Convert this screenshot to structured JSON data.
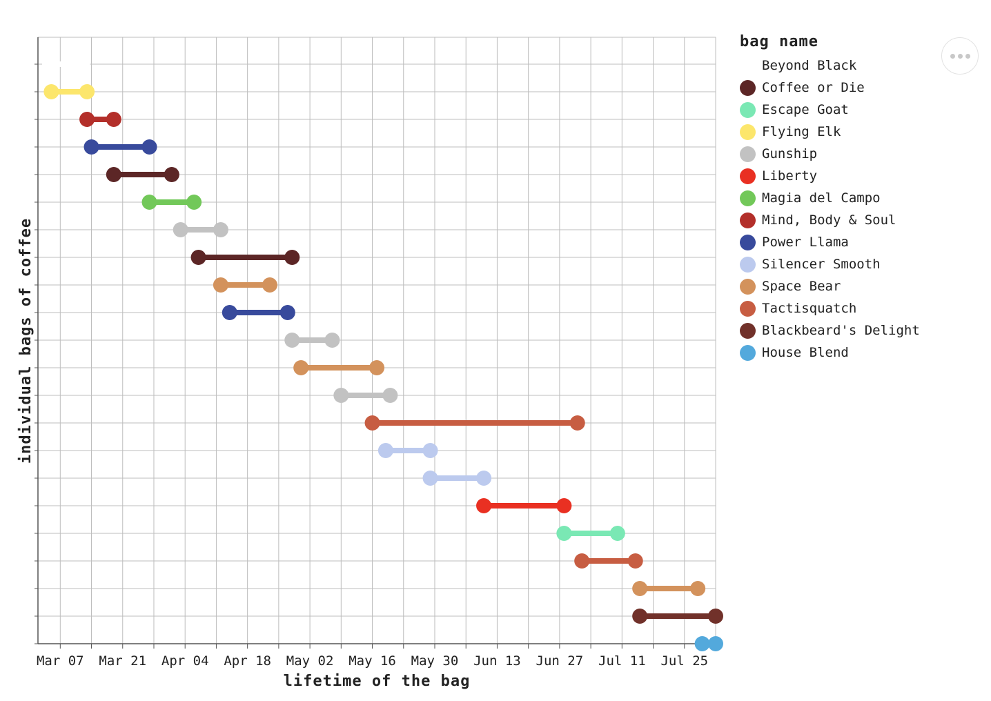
{
  "chart_data": {
    "type": "dumbbell",
    "xlabel": "lifetime of the bag",
    "ylabel": "individual bags of coffee",
    "x_ticks": [
      "Mar 07",
      "Mar 21",
      "Apr 04",
      "Apr 18",
      "May 02",
      "May 16",
      "May 30",
      "Jun 13",
      "Jun 27",
      "Jul 11",
      "Jul 25"
    ],
    "xlim": [
      "2021-03-02",
      "2021-08-01"
    ],
    "legend_title": "bag name",
    "legend_position": "right",
    "grid": true,
    "colors": {
      "Beyond Black": "#ffffff",
      "Coffee or Die": "#5c2626",
      "Escape Goat": "#7ae8b4",
      "Flying Elk": "#fce66c",
      "Gunship": "#c2c2c2",
      "Liberty": "#e93022",
      "Magia del Campo": "#72c859",
      "Mind, Body & Soul": "#b32f2a",
      "Power Llama": "#384a9c",
      "Silencer Smooth": "#bccaee",
      "Space Bear": "#d3925c",
      "Tactisquatch": "#c75d42",
      "Blackbeard's Delight": "#71312a",
      "House Blend": "#53a9dc"
    },
    "series": [
      {
        "name": "Beyond Black",
        "start": "2021-03-02",
        "end": "2021-03-12"
      },
      {
        "name": "Flying Elk",
        "start": "2021-03-05",
        "end": "2021-03-13"
      },
      {
        "name": "Mind, Body & Soul",
        "start": "2021-03-13",
        "end": "2021-03-19"
      },
      {
        "name": "Power Llama",
        "start": "2021-03-14",
        "end": "2021-03-27"
      },
      {
        "name": "Coffee or Die",
        "start": "2021-03-19",
        "end": "2021-04-01"
      },
      {
        "name": "Magia del Campo",
        "start": "2021-03-27",
        "end": "2021-04-06"
      },
      {
        "name": "Gunship",
        "start": "2021-04-03",
        "end": "2021-04-12"
      },
      {
        "name": "Coffee or Die",
        "start": "2021-04-07",
        "end": "2021-04-28"
      },
      {
        "name": "Space Bear",
        "start": "2021-04-12",
        "end": "2021-04-23"
      },
      {
        "name": "Power Llama",
        "start": "2021-04-14",
        "end": "2021-04-27"
      },
      {
        "name": "Gunship",
        "start": "2021-04-28",
        "end": "2021-05-07"
      },
      {
        "name": "Space Bear",
        "start": "2021-04-30",
        "end": "2021-05-17"
      },
      {
        "name": "Gunship",
        "start": "2021-05-09",
        "end": "2021-05-20"
      },
      {
        "name": "Tactisquatch",
        "start": "2021-05-16",
        "end": "2021-07-01"
      },
      {
        "name": "Silencer Smooth",
        "start": "2021-05-19",
        "end": "2021-05-29"
      },
      {
        "name": "Silencer Smooth",
        "start": "2021-05-29",
        "end": "2021-06-10"
      },
      {
        "name": "Liberty",
        "start": "2021-06-10",
        "end": "2021-06-28"
      },
      {
        "name": "Escape Goat",
        "start": "2021-06-28",
        "end": "2021-07-10"
      },
      {
        "name": "Tactisquatch",
        "start": "2021-07-02",
        "end": "2021-07-14"
      },
      {
        "name": "Space Bear",
        "start": "2021-07-15",
        "end": "2021-07-28"
      },
      {
        "name": "Blackbeard's Delight",
        "start": "2021-07-15",
        "end": "2021-08-03"
      },
      {
        "name": "House Blend",
        "start": "2021-07-29",
        "end": "2021-08-03"
      }
    ]
  },
  "legend": {
    "title": "bag name",
    "items": [
      {
        "label": "Beyond Black",
        "color": "#ffffff"
      },
      {
        "label": "Coffee or Die",
        "color": "#5c2626"
      },
      {
        "label": "Escape Goat",
        "color": "#7ae8b4"
      },
      {
        "label": "Flying Elk",
        "color": "#fce66c"
      },
      {
        "label": "Gunship",
        "color": "#c2c2c2"
      },
      {
        "label": "Liberty",
        "color": "#e93022"
      },
      {
        "label": "Magia del Campo",
        "color": "#72c859"
      },
      {
        "label": "Mind, Body & Soul",
        "color": "#b32f2a"
      },
      {
        "label": "Power Llama",
        "color": "#384a9c"
      },
      {
        "label": "Silencer Smooth",
        "color": "#bccaee"
      },
      {
        "label": "Space Bear",
        "color": "#d3925c"
      },
      {
        "label": "Tactisquatch",
        "color": "#c75d42"
      },
      {
        "label": "Blackbeard's Delight",
        "color": "#71312a"
      },
      {
        "label": "House Blend",
        "color": "#53a9dc"
      }
    ]
  },
  "toolbar": {
    "more_icon": "more-horizontal-icon"
  }
}
